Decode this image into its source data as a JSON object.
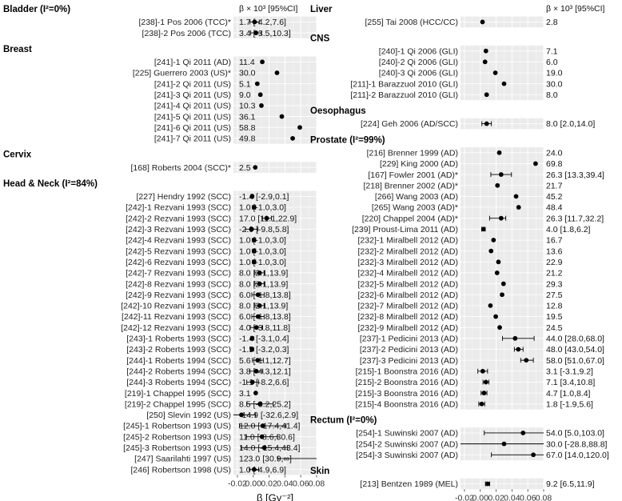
{
  "chart_data": [
    {
      "type": "forest",
      "panel": "left",
      "xlabel": "β [Gy⁻²]",
      "value_header": "β × 10³ [95%CI]",
      "xlim": [
        -0.025,
        0.08
      ],
      "xticks": [
        -0.02,
        0.0,
        0.02,
        0.04,
        0.06,
        0.08
      ],
      "xtick_labels": [
        "-0.02",
        "0.00",
        "0.02",
        "0.04",
        "0.06",
        "0.08"
      ],
      "groups": [
        {
          "title": "Bladder (I²=0%)",
          "rows": [
            {
              "label": "[238]-1 Pos 2006 (TCC)*",
              "ci_text": "1.7 [-4.2,7.6]",
              "est": 1.7,
              "lo": -4.2,
              "hi": 7.6
            },
            {
              "label": "[238]-2 Pos 2006 (TCC)",
              "ci_text": "3.4 [-3.5,10.3]",
              "est": 3.4,
              "lo": -3.5,
              "hi": 10.3
            }
          ]
        },
        {
          "title": "Breast",
          "rows": [
            {
              "label": "[241]-1 Qi 2011 (AD)",
              "ci_text": "11.4",
              "est": 11.4
            },
            {
              "label": "[225] Guerrero 2003 (US)*",
              "ci_text": "30.0",
              "est": 30.0
            },
            {
              "label": "[241]-2 Qi 2011 (US)",
              "ci_text": "5.1",
              "est": 5.1
            },
            {
              "label": "[241]-3 Qi 2011 (US)",
              "ci_text": "9.0",
              "est": 9.0
            },
            {
              "label": "[241]-4 Qi 2011 (US)",
              "ci_text": "10.3",
              "est": 10.3
            },
            {
              "label": "[241]-5 Qi 2011 (US)",
              "ci_text": "36.1",
              "est": 36.1
            },
            {
              "label": "[241]-6 Qi 2011 (US)",
              "ci_text": "58.8",
              "est": 58.8
            },
            {
              "label": "[241]-7 Qi 2011 (US)",
              "ci_text": "49.8",
              "est": 49.8
            }
          ]
        },
        {
          "title": "Cervix",
          "rows": [
            {
              "label": "[168] Roberts 2004 (SCC)*",
              "ci_text": "2.5",
              "est": 2.5
            }
          ]
        },
        {
          "title": "Head & Neck (I²=84%)",
          "rows": [
            {
              "label": "[227] Hendry 1992 (SCC)",
              "ci_text": "-1.4 [-2.9,0.1]",
              "est": -1.4,
              "lo": -2.9,
              "hi": 0.1
            },
            {
              "label": "[242]-1 Rezvani 1993 (SCC)",
              "ci_text": "1.0 [-1.0,3.0]",
              "est": 1.0,
              "lo": -1.0,
              "hi": 3.0
            },
            {
              "label": "[242]-2 Rezvani 1993 (SCC)",
              "ci_text": "17.0 [11.1,22.9]",
              "est": 17.0,
              "lo": 11.1,
              "hi": 22.9
            },
            {
              "label": "[242]-3 Rezvani 1993 (SCC)",
              "ci_text": "-2.0 [-9.8,5.8]",
              "est": -2.0,
              "lo": -9.8,
              "hi": 5.8
            },
            {
              "label": "[242]-4 Rezvani 1993 (SCC)",
              "ci_text": "1.0 [-1.0,3.0]",
              "est": 1.0,
              "lo": -1.0,
              "hi": 3.0
            },
            {
              "label": "[242]-5 Rezvani 1993 (SCC)",
              "ci_text": "1.0 [-1.0,3.0]",
              "est": 1.0,
              "lo": -1.0,
              "hi": 3.0
            },
            {
              "label": "[242]-6 Rezvani 1993 (SCC)",
              "ci_text": "1.0 [-1.0,3.0]",
              "est": 1.0,
              "lo": -1.0,
              "hi": 3.0
            },
            {
              "label": "[242]-7 Rezvani 1993 (SCC)",
              "ci_text": "8.0 [2.1,13.9]",
              "est": 8.0,
              "lo": 2.1,
              "hi": 13.9
            },
            {
              "label": "[242]-8 Rezvani 1993 (SCC)",
              "ci_text": "8.0 [2.1,13.9]",
              "est": 8.0,
              "lo": 2.1,
              "hi": 13.9
            },
            {
              "label": "[242]-9 Rezvani 1993 (SCC)",
              "ci_text": "6.0 [-1.8,13.8]",
              "est": 6.0,
              "lo": -1.8,
              "hi": 13.8
            },
            {
              "label": "[242]-10 Rezvani 1993 (SCC)",
              "ci_text": "8.0 [2.1,13.9]",
              "est": 8.0,
              "lo": 2.1,
              "hi": 13.9
            },
            {
              "label": "[242]-11 Rezvani 1993 (SCC)",
              "ci_text": "6.0 [-1.8,13.8]",
              "est": 6.0,
              "lo": -1.8,
              "hi": 13.8
            },
            {
              "label": "[242]-12 Rezvani 1993 (SCC)",
              "ci_text": "4.0 [-3.8,11.8]",
              "est": 4.0,
              "lo": -3.8,
              "hi": 11.8
            },
            {
              "label": "[243]-1 Roberts 1993 (SCC)",
              "ci_text": "-1.4 [-3.1,0.4]",
              "est": -1.4,
              "lo": -3.1,
              "hi": 0.4
            },
            {
              "label": "[243]-2 Roberts 1993 (SCC)",
              "ci_text": "-1.5 [-3.2,0.3]",
              "est": -1.5,
              "lo": -3.2,
              "hi": 0.3
            },
            {
              "label": "[244]-1 Roberts 1994 (SCC)",
              "ci_text": "5.6 [-1.1,12.7]",
              "est": 5.6,
              "lo": -1.1,
              "hi": 12.7
            },
            {
              "label": "[244]-2 Roberts 1994 (SCC)",
              "ci_text": "3.8 [-4.3,12.1]",
              "est": 3.8,
              "lo": -4.3,
              "hi": 12.1
            },
            {
              "label": "[244]-3 Roberts 1994 (SCC)",
              "ci_text": "-1.1 [-8.2,6.6]",
              "est": -1.1,
              "lo": -8.2,
              "hi": 6.6
            },
            {
              "label": "[219]-1 Chappel 1995 (SCC)",
              "ci_text": "3.1",
              "est": 3.1
            },
            {
              "label": "[219]-2 Chappel 1995 (SCC)",
              "ci_text": "8.5 [-8.2,25.2]",
              "est": 8.5,
              "lo": -8.2,
              "hi": 25.2
            },
            {
              "label": "[250] Slevin 1992 (US)",
              "ci_text": "-14.9 [-32.6,2.9]",
              "est": -14.9,
              "lo": -32.6,
              "hi": 2.9
            },
            {
              "label": "[245]-1 Robertson 1993 (US)",
              "ci_text": "12.0 [-17.4,41.4]",
              "est": 12.0,
              "lo": -17.4,
              "hi": 41.4
            },
            {
              "label": "[245]-2 Robertson 1993 (US)",
              "ci_text": "11.0 [-8.6,30.6]",
              "est": 11.0,
              "lo": -8.6,
              "hi": 30.6
            },
            {
              "label": "[245]-3 Robertson 1993 (US)",
              "ci_text": "14.0 [-15.4,43.4]",
              "est": 14.0,
              "lo": -15.4,
              "hi": 43.4
            },
            {
              "label": "[247] Saarilahti 1997 (US)",
              "ci_text": "123.0 [30.9,∞]",
              "est": 123.0,
              "lo": 30.9,
              "hi": null
            },
            {
              "label": "[246] Robertson 1998 (US)",
              "ci_text": "1.0 [-4.9,6.9]",
              "est": 1.0,
              "lo": -4.9,
              "hi": 6.9
            }
          ]
        }
      ]
    },
    {
      "type": "forest",
      "panel": "right",
      "xlabel": "β [Gy⁻²]",
      "value_header": "β × 10³ [95%CI]",
      "xlim": [
        -0.025,
        0.08
      ],
      "xticks": [
        -0.02,
        0.0,
        0.02,
        0.04,
        0.06,
        0.08
      ],
      "xtick_labels": [
        "-0.02",
        "0.00",
        "0.02",
        "0.04",
        "0.06",
        "0.08"
      ],
      "groups": [
        {
          "title": "Liver",
          "rows": [
            {
              "label": "[255] Tai 2008 (HCC/CC)",
              "ci_text": "2.8",
              "est": 2.8
            }
          ]
        },
        {
          "title": "CNS",
          "rows": [
            {
              "label": "[240]-1 Qi 2006 (GLI)",
              "ci_text": "7.1",
              "est": 7.1
            },
            {
              "label": "[240]-2 Qi 2006 (GLI)",
              "ci_text": "6.0",
              "est": 6.0
            },
            {
              "label": "[240]-3 Qi 2006 (GLI)",
              "ci_text": "19.0",
              "est": 19.0
            },
            {
              "label": "[211]-1 Barazzuol 2010 (GLI)",
              "ci_text": "30.0",
              "est": 30.0
            },
            {
              "label": "[211]-2 Barazzuol 2010 (GLI)",
              "ci_text": "8.0",
              "est": 8.0
            }
          ]
        },
        {
          "title": "Oesophagus",
          "rows": [
            {
              "label": "[224] Geh 2006 (AD/SCC)",
              "ci_text": "8.0 [2.0,14.0]",
              "est": 8.0,
              "lo": 2.0,
              "hi": 14.0
            }
          ]
        },
        {
          "title": "Prostate (I²=99%)",
          "rows": [
            {
              "label": "[216] Brenner 1999 (AD)",
              "ci_text": "24.0",
              "est": 24.0
            },
            {
              "label": "[229] King 2000 (AD)",
              "ci_text": "69.8",
              "est": 69.8
            },
            {
              "label": "[167] Fowler 2001 (AD)*",
              "ci_text": "26.3 [13.3,39.4]",
              "est": 26.3,
              "lo": 13.3,
              "hi": 39.4
            },
            {
              "label": "[218] Brenner 2002 (AD)*",
              "ci_text": "21.7",
              "est": 21.7
            },
            {
              "label": "[266] Wang 2003 (AD)",
              "ci_text": "45.2",
              "est": 45.2
            },
            {
              "label": "[265] Wang 2003 (AD)*",
              "ci_text": "48.4",
              "est": 48.4
            },
            {
              "label": "[220] Chappel 2004 (AD)*",
              "ci_text": "26.3 [11.7,32.2]",
              "est": 26.3,
              "lo": 11.7,
              "hi": 32.2
            },
            {
              "label": "[239] Proust-Lima 2011 (AD)",
              "ci_text": "4.0 [1.8,6.2]",
              "est": 4.0,
              "lo": 1.8,
              "hi": 6.2
            },
            {
              "label": "[232]-1 Miralbell 2012 (AD)",
              "ci_text": "16.7",
              "est": 16.7
            },
            {
              "label": "[232]-2 Miralbell 2012 (AD)",
              "ci_text": "13.6",
              "est": 13.6
            },
            {
              "label": "[232]-3 Miralbell 2012 (AD)",
              "ci_text": "22.9",
              "est": 22.9
            },
            {
              "label": "[232]-4 Miralbell 2012 (AD)",
              "ci_text": "21.2",
              "est": 21.2
            },
            {
              "label": "[232]-5 Miralbell 2012 (AD)",
              "ci_text": "29.3",
              "est": 29.3
            },
            {
              "label": "[232]-6 Miralbell 2012 (AD)",
              "ci_text": "27.5",
              "est": 27.5
            },
            {
              "label": "[232]-7 Miralbell 2012 (AD)",
              "ci_text": "12.8",
              "est": 12.8
            },
            {
              "label": "[232]-8 Miralbell 2012 (AD)",
              "ci_text": "19.5",
              "est": 19.5
            },
            {
              "label": "[232]-9 Miralbell 2012 (AD)",
              "ci_text": "24.5",
              "est": 24.5
            },
            {
              "label": "[237]-1 Pedicini 2013 (AD)",
              "ci_text": "44.0 [28.0,68.0]",
              "est": 44.0,
              "lo": 28.0,
              "hi": 68.0
            },
            {
              "label": "[237]-2 Pedicini 2013 (AD)",
              "ci_text": "48.0 [43.0,54.0]",
              "est": 48.0,
              "lo": 43.0,
              "hi": 54.0
            },
            {
              "label": "[237]-3 Pedicini 2013 (AD)",
              "ci_text": "58.0 [51.0,67.0]",
              "est": 58.0,
              "lo": 51.0,
              "hi": 67.0
            },
            {
              "label": "[215]-1 Boonstra 2016 (AD)",
              "ci_text": "3.1 [-3.1,9.2]",
              "est": 3.1,
              "lo": -3.1,
              "hi": 9.2
            },
            {
              "label": "[215]-2 Boonstra 2016 (AD)",
              "ci_text": "7.1 [3.4,10.8]",
              "est": 7.1,
              "lo": 3.4,
              "hi": 10.8
            },
            {
              "label": "[215]-3 Boonstra 2016 (AD)",
              "ci_text": "4.7 [1.0,8.4]",
              "est": 4.7,
              "lo": 1.0,
              "hi": 8.4
            },
            {
              "label": "[215]-4 Boonstra 2016 (AD)",
              "ci_text": "1.8 [-1.9,5.6]",
              "est": 1.8,
              "lo": -1.9,
              "hi": 5.6
            }
          ]
        },
        {
          "title": "Rectum (I²=0%)",
          "rows": [
            {
              "label": "[254]-1 Suwinski 2007 (AD)",
              "ci_text": "54.0 [5.0,103.0]",
              "est": 54.0,
              "lo": 5.0,
              "hi": 103.0
            },
            {
              "label": "[254]-2 Suwinski 2007 (AD)",
              "ci_text": "30.0 [-28.8,88.8]",
              "est": 30.0,
              "lo": -28.8,
              "hi": 88.8
            },
            {
              "label": "[254]-3 Suwinski 2007 (AD)",
              "ci_text": "67.0 [14.0,120.0]",
              "est": 67.0,
              "lo": 14.0,
              "hi": 120.0
            }
          ]
        },
        {
          "title": "Skin",
          "rows": [
            {
              "label": "[213] Bentzen 1989 (MEL)",
              "ci_text": "9.2 [6.5,11.9]",
              "est": 9.2,
              "lo": 6.5,
              "hi": 11.9
            }
          ]
        }
      ]
    }
  ]
}
